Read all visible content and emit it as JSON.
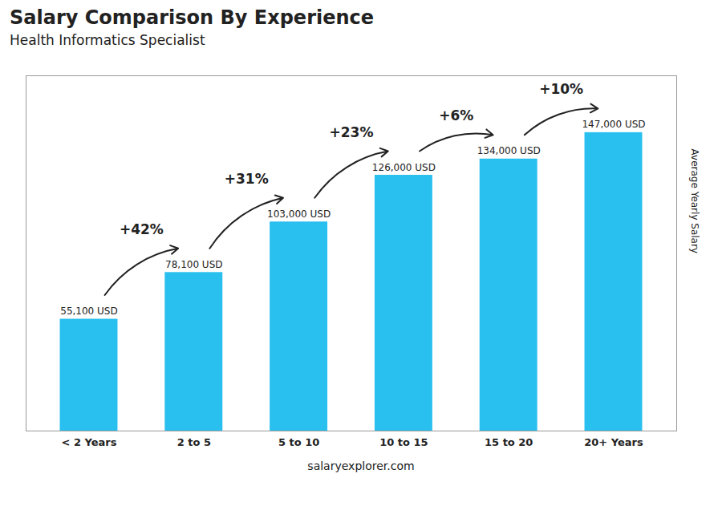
{
  "chart_data": {
    "type": "bar",
    "title": "Salary Comparison By Experience",
    "subtitle": "Health Informatics Specialist",
    "caption": "salaryexplorer.com",
    "ylabel": "Average Yearly Salary",
    "categories": [
      "< 2 Years",
      "2 to 5",
      "5 to 10",
      "10 to 15",
      "15 to 20",
      "20+ Years"
    ],
    "values": [
      55100,
      78100,
      103000,
      126000,
      134000,
      147000
    ],
    "value_labels": [
      "55,100 USD",
      "78,100 USD",
      "103,000 USD",
      "126,000 USD",
      "134,000 USD",
      "147,000 USD"
    ],
    "data_labels": true,
    "annotations": [
      "+42%",
      "+31%",
      "+23%",
      "+6%",
      "+10%"
    ],
    "color": "#29BFEF",
    "ylim": [
      0,
      175000
    ],
    "tick_labels": "x",
    "grid": false
  }
}
